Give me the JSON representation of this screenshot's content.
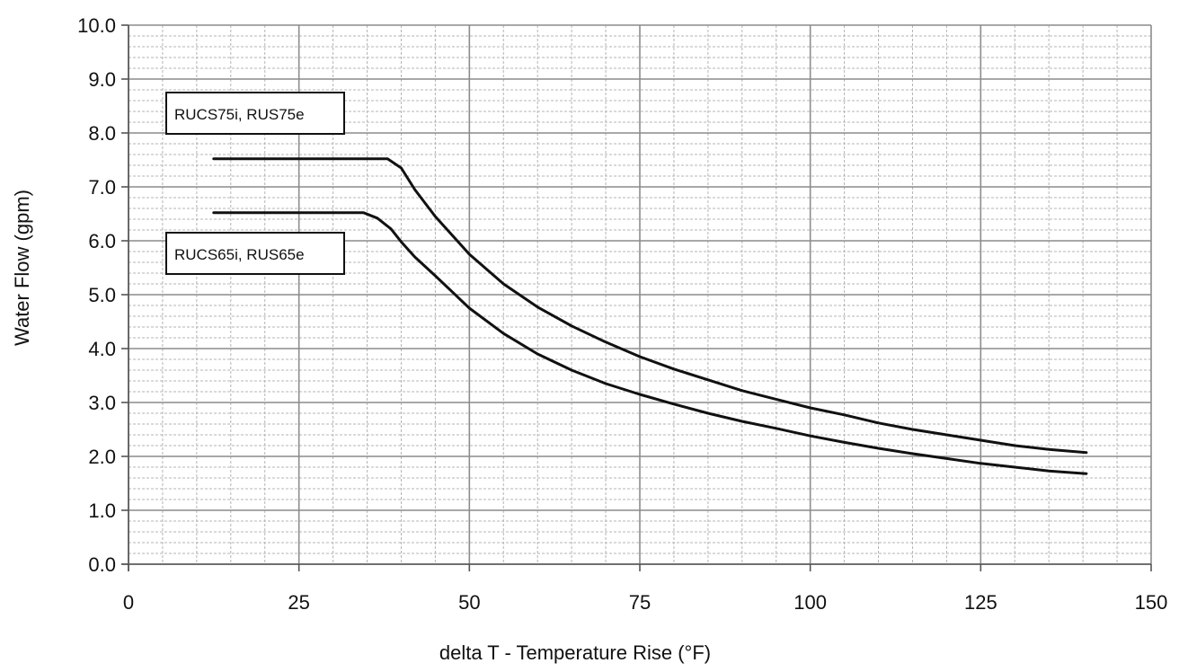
{
  "chart_data": {
    "type": "line",
    "xlabel": "delta T - Temperature Rise (°F)",
    "ylabel": "Water Flow (gpm)",
    "xlim": [
      0,
      150
    ],
    "ylim": [
      0,
      10
    ],
    "x_ticks": [
      0,
      25,
      50,
      75,
      100,
      125,
      150
    ],
    "y_ticks": [
      0,
      1,
      2,
      3,
      4,
      5,
      6,
      7,
      8,
      9,
      10
    ],
    "x_tick_labels": [
      "0",
      "25",
      "50",
      "75",
      "100",
      "125",
      "150"
    ],
    "y_tick_labels": [
      "0.0",
      "1.0",
      "2.0",
      "3.0",
      "4.0",
      "5.0",
      "6.0",
      "7.0",
      "8.0",
      "9.0",
      "10.0"
    ],
    "grid": true,
    "legend": "none",
    "series": [
      {
        "name": "RUCS75i, RUS75e",
        "points": [
          [
            12.5,
            7.52
          ],
          [
            38,
            7.52
          ],
          [
            40,
            7.35
          ],
          [
            42,
            6.95
          ],
          [
            45,
            6.45
          ],
          [
            50,
            5.75
          ],
          [
            55,
            5.2
          ],
          [
            60,
            4.77
          ],
          [
            65,
            4.42
          ],
          [
            70,
            4.12
          ],
          [
            75,
            3.85
          ],
          [
            80,
            3.62
          ],
          [
            85,
            3.42
          ],
          [
            90,
            3.22
          ],
          [
            95,
            3.06
          ],
          [
            100,
            2.9
          ],
          [
            105,
            2.77
          ],
          [
            110,
            2.62
          ],
          [
            115,
            2.5
          ],
          [
            120,
            2.4
          ],
          [
            125,
            2.3
          ],
          [
            130,
            2.2
          ],
          [
            135,
            2.13
          ],
          [
            140.5,
            2.07
          ]
        ]
      },
      {
        "name": "RUCS65i, RUS65e",
        "points": [
          [
            12.5,
            6.52
          ],
          [
            34.5,
            6.52
          ],
          [
            36.5,
            6.42
          ],
          [
            38.5,
            6.22
          ],
          [
            40,
            5.98
          ],
          [
            42,
            5.7
          ],
          [
            45,
            5.35
          ],
          [
            50,
            4.75
          ],
          [
            55,
            4.28
          ],
          [
            60,
            3.9
          ],
          [
            65,
            3.6
          ],
          [
            70,
            3.35
          ],
          [
            75,
            3.15
          ],
          [
            80,
            2.97
          ],
          [
            85,
            2.8
          ],
          [
            90,
            2.65
          ],
          [
            95,
            2.52
          ],
          [
            100,
            2.38
          ],
          [
            105,
            2.26
          ],
          [
            110,
            2.15
          ],
          [
            115,
            2.05
          ],
          [
            120,
            1.96
          ],
          [
            125,
            1.87
          ],
          [
            130,
            1.8
          ],
          [
            135,
            1.73
          ],
          [
            140.5,
            1.68
          ]
        ]
      }
    ]
  },
  "annotations": [
    {
      "text": "RUCS75i, RUS75e",
      "series": 0
    },
    {
      "text": "RUCS65i, RUS65e",
      "series": 1
    }
  ],
  "colors": {
    "line": "#111111",
    "major_grid": "#8c8c8c",
    "minor_grid": "#b4b4b4",
    "axis": "#555555"
  }
}
